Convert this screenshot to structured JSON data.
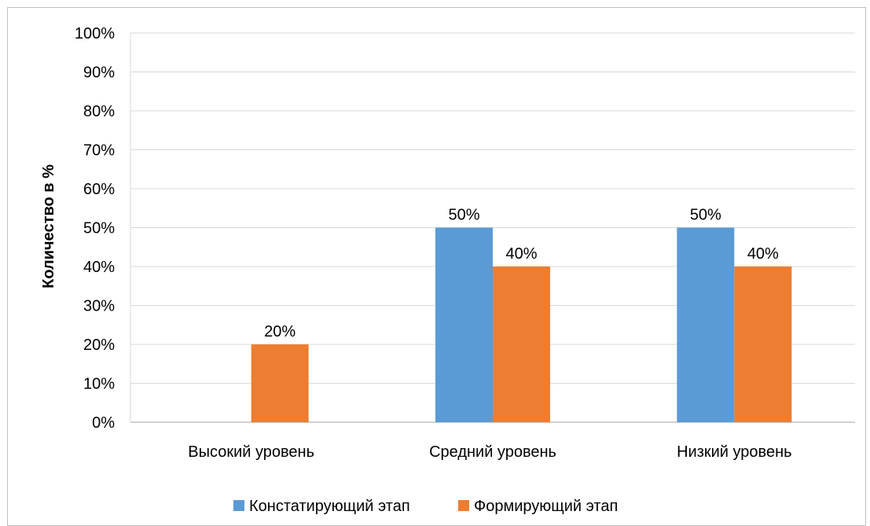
{
  "chart_data": {
    "type": "bar",
    "categories": [
      "Высокий уровень",
      "Средний уровень",
      "Низкий уровень"
    ],
    "series": [
      {
        "name": "Констатирующий этап",
        "values": [
          0,
          50,
          50
        ],
        "labels": [
          "",
          "50%",
          "50%"
        ],
        "color": "#5b9bd5"
      },
      {
        "name": "Формирующий этап",
        "values": [
          20,
          40,
          40
        ],
        "labels": [
          "20%",
          "40%",
          "40%"
        ],
        "color": "#ed7d31"
      }
    ],
    "ylabel": "Количество в %",
    "ylim": [
      0,
      100
    ],
    "yticks": [
      "0%",
      "10%",
      "20%",
      "30%",
      "40%",
      "50%",
      "60%",
      "70%",
      "80%",
      "90%",
      "100%"
    ],
    "grid": true,
    "legend_position": "bottom"
  }
}
